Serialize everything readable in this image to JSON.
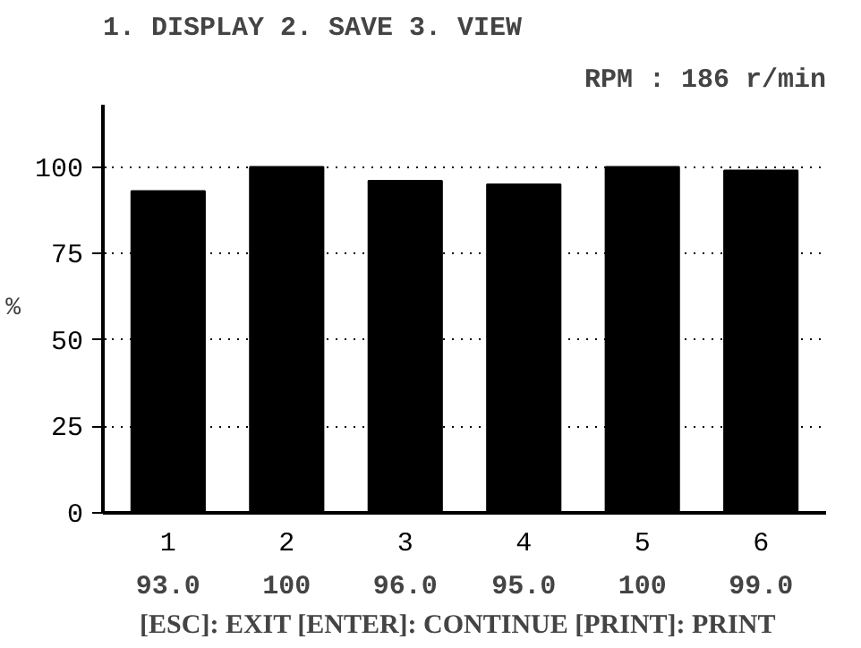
{
  "chart_data": {
    "type": "bar",
    "title": "RPM : 186 r/min",
    "ylabel": "%",
    "categories": [
      "1",
      "2",
      "3",
      "4",
      "5",
      "6"
    ],
    "values": [
      93.0,
      100,
      96.0,
      95.0,
      100,
      99.0
    ],
    "value_labels": [
      "93.0",
      "100",
      "96.0",
      "95.0",
      "100",
      "99.0"
    ],
    "color": "#000000",
    "ylim": [
      0,
      118
    ],
    "yticks": [
      0,
      25,
      50,
      75,
      100
    ],
    "grid": "y",
    "line_style": "dotted",
    "annotations": [
      "1. DISPLAY",
      "2. SAVE",
      "3. VIEW",
      "[ESC]: EXIT  [ENTER]: CONTINUE  [PRINT]: PRINT"
    ]
  }
}
